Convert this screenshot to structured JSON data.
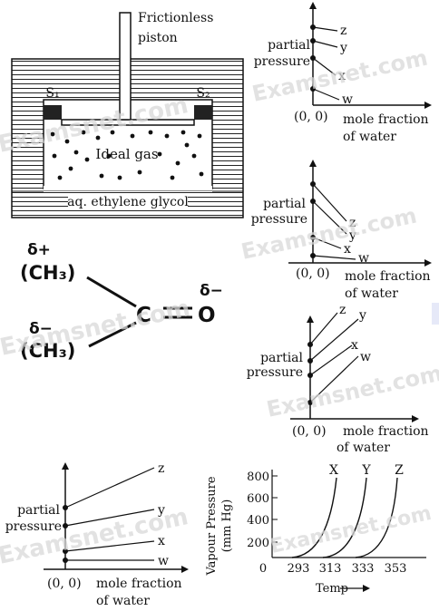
{
  "watermark": "Examsnet.com",
  "apparatus": {
    "piston_label_1": "Frictionless",
    "piston_label_2": "piston",
    "stopper_left": "S₁",
    "stopper_right": "S₂",
    "gas_label": "Ideal gas",
    "liquid_label": "aq. ethylene glycol"
  },
  "molecule": {
    "group_top": "(CH₃)",
    "group_bottom": "(CH₃)",
    "delta_top": "δ+",
    "delta_bottom": "δ−",
    "delta_oxygen": "δ−",
    "carbon": "C",
    "oxygen": "O"
  },
  "partial_pressure_graphs": [
    {
      "ylabel_1": "partial",
      "ylabel_2": "pressure",
      "origin": "(0, 0)",
      "xlabel_1": "mole fraction",
      "xlabel_2": "of water",
      "lines": [
        "z",
        "y",
        "x",
        "w"
      ]
    },
    {
      "ylabel_1": "partial",
      "ylabel_2": "pressure",
      "origin": "(0, 0)",
      "xlabel_1": "mole fraction",
      "xlabel_2": "of water",
      "lines": [
        "z",
        "y",
        "x",
        "w"
      ]
    },
    {
      "ylabel_1": "partial",
      "ylabel_2": "pressure",
      "origin": "(0, 0)",
      "xlabel_1": "mole fraction",
      "xlabel_2": "of water",
      "lines": [
        "z",
        "y",
        "x",
        "w"
      ]
    },
    {
      "ylabel_1": "partial",
      "ylabel_2": "pressure",
      "origin": "(0, 0)",
      "xlabel_1": "mole fraction",
      "xlabel_2": "of water",
      "lines": [
        "z",
        "y",
        "x",
        "w"
      ]
    }
  ],
  "vapour_pressure_chart": {
    "ylabel": "Vapour Pressure",
    "yunit": "(mm Hg)",
    "xlabel": "Temp",
    "y_ticks": [
      "800",
      "600",
      "400",
      "200"
    ],
    "x_ticks": [
      "0",
      "293",
      "313",
      "333",
      "353"
    ],
    "curves": [
      "X",
      "Y",
      "Z"
    ]
  }
}
